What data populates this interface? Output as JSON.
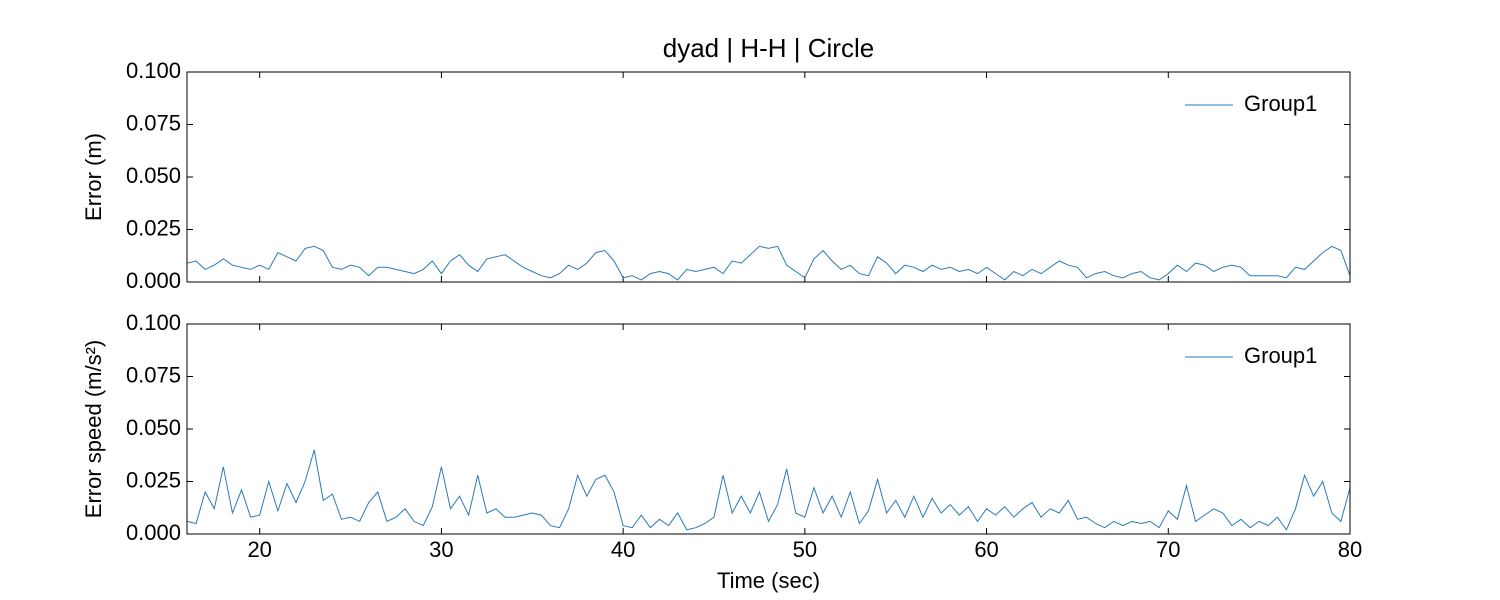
{
  "chart_data": [
    {
      "type": "line",
      "title": "dyad | H-H | Circle",
      "ylabel": "Error (m)",
      "x": [
        16,
        16.5,
        17,
        17.5,
        18,
        18.5,
        19,
        19.5,
        20,
        20.5,
        21,
        21.5,
        22,
        22.5,
        23,
        23.5,
        24,
        24.5,
        25,
        25.5,
        26,
        26.5,
        27,
        27.5,
        28,
        28.5,
        29,
        29.5,
        30,
        30.5,
        31,
        31.5,
        32,
        32.5,
        33,
        33.5,
        34,
        34.5,
        35,
        35.5,
        36,
        36.5,
        37,
        37.5,
        38,
        38.5,
        39,
        39.5,
        40,
        40.5,
        41,
        41.5,
        42,
        42.5,
        43,
        43.5,
        44,
        44.5,
        45,
        45.5,
        46,
        46.5,
        47,
        47.5,
        48,
        48.5,
        49,
        49.5,
        50,
        50.5,
        51,
        51.5,
        52,
        52.5,
        53,
        53.5,
        54,
        54.5,
        55,
        55.5,
        56,
        56.5,
        57,
        57.5,
        58,
        58.5,
        59,
        59.5,
        60,
        60.5,
        61,
        61.5,
        62,
        62.5,
        63,
        63.5,
        64,
        64.5,
        65,
        65.5,
        66,
        66.5,
        67,
        67.5,
        68,
        68.5,
        69,
        69.5,
        70,
        70.5,
        71,
        71.5,
        72,
        72.5,
        73,
        73.5,
        74,
        74.5,
        75,
        75.5,
        76,
        76.5,
        77,
        77.5,
        78,
        78.5,
        79,
        79.5,
        80
      ],
      "series": [
        {
          "name": "Group1",
          "color": "#2a7ab8",
          "values": [
            0.009,
            0.01,
            0.006,
            0.008,
            0.011,
            0.008,
            0.007,
            0.006,
            0.008,
            0.006,
            0.014,
            0.012,
            0.01,
            0.016,
            0.017,
            0.015,
            0.007,
            0.006,
            0.008,
            0.007,
            0.003,
            0.007,
            0.007,
            0.006,
            0.005,
            0.004,
            0.006,
            0.01,
            0.004,
            0.01,
            0.013,
            0.008,
            0.005,
            0.011,
            0.012,
            0.013,
            0.01,
            0.007,
            0.005,
            0.003,
            0.002,
            0.004,
            0.008,
            0.006,
            0.009,
            0.014,
            0.015,
            0.01,
            0.002,
            0.003,
            0.001,
            0.004,
            0.005,
            0.004,
            0.001,
            0.006,
            0.005,
            0.006,
            0.007,
            0.004,
            0.01,
            0.009,
            0.013,
            0.017,
            0.016,
            0.017,
            0.008,
            0.005,
            0.002,
            0.011,
            0.015,
            0.01,
            0.006,
            0.008,
            0.004,
            0.003,
            0.012,
            0.009,
            0.004,
            0.008,
            0.007,
            0.005,
            0.008,
            0.006,
            0.007,
            0.005,
            0.006,
            0.004,
            0.007,
            0.004,
            0.001,
            0.005,
            0.003,
            0.006,
            0.004,
            0.007,
            0.01,
            0.008,
            0.007,
            0.002,
            0.004,
            0.005,
            0.003,
            0.002,
            0.004,
            0.005,
            0.002,
            0.001,
            0.004,
            0.008,
            0.005,
            0.009,
            0.008,
            0.005,
            0.007,
            0.008,
            0.007,
            0.003,
            0.003,
            0.003,
            0.003,
            0.002,
            0.007,
            0.006,
            0.01,
            0.014,
            0.017,
            0.015,
            0.003
          ]
        }
      ],
      "xlim": [
        16,
        80
      ],
      "xticks": [
        20,
        30,
        40,
        50,
        60,
        70,
        80
      ],
      "ylim": [
        0,
        0.1
      ],
      "yticks": [
        {
          "value": 0,
          "label": "0.000"
        },
        {
          "value": 0.025,
          "label": "0.025"
        },
        {
          "value": 0.05,
          "label": "0.050"
        },
        {
          "value": 0.075,
          "label": "0.075"
        },
        {
          "value": 0.1,
          "label": "0.100"
        }
      ],
      "legend": "upper right"
    },
    {
      "type": "line",
      "ylabel": "Error speed (m/s²)",
      "xlabel": "Time (sec)",
      "x": [
        16,
        16.5,
        17,
        17.5,
        18,
        18.5,
        19,
        19.5,
        20,
        20.5,
        21,
        21.5,
        22,
        22.5,
        23,
        23.5,
        24,
        24.5,
        25,
        25.5,
        26,
        26.5,
        27,
        27.5,
        28,
        28.5,
        29,
        29.5,
        30,
        30.5,
        31,
        31.5,
        32,
        32.5,
        33,
        33.5,
        34,
        34.5,
        35,
        35.5,
        36,
        36.5,
        37,
        37.5,
        38,
        38.5,
        39,
        39.5,
        40,
        40.5,
        41,
        41.5,
        42,
        42.5,
        43,
        43.5,
        44,
        44.5,
        45,
        45.5,
        46,
        46.5,
        47,
        47.5,
        48,
        48.5,
        49,
        49.5,
        50,
        50.5,
        51,
        51.5,
        52,
        52.5,
        53,
        53.5,
        54,
        54.5,
        55,
        55.5,
        56,
        56.5,
        57,
        57.5,
        58,
        58.5,
        59,
        59.5,
        60,
        60.5,
        61,
        61.5,
        62,
        62.5,
        63,
        63.5,
        64,
        64.5,
        65,
        65.5,
        66,
        66.5,
        67,
        67.5,
        68,
        68.5,
        69,
        69.5,
        70,
        70.5,
        71,
        71.5,
        72,
        72.5,
        73,
        73.5,
        74,
        74.5,
        75,
        75.5,
        76,
        76.5,
        77,
        77.5,
        78,
        78.5,
        79,
        79.5,
        80
      ],
      "series": [
        {
          "name": "Group1",
          "color": "#2a7ab8",
          "values": [
            0.006,
            0.005,
            0.02,
            0.012,
            0.032,
            0.01,
            0.021,
            0.008,
            0.009,
            0.025,
            0.011,
            0.024,
            0.015,
            0.025,
            0.04,
            0.016,
            0.019,
            0.007,
            0.008,
            0.006,
            0.015,
            0.02,
            0.006,
            0.008,
            0.012,
            0.006,
            0.004,
            0.013,
            0.032,
            0.012,
            0.018,
            0.009,
            0.028,
            0.01,
            0.012,
            0.008,
            0.008,
            0.009,
            0.01,
            0.009,
            0.004,
            0.003,
            0.012,
            0.028,
            0.018,
            0.026,
            0.028,
            0.02,
            0.004,
            0.003,
            0.009,
            0.003,
            0.007,
            0.004,
            0.01,
            0.002,
            0.003,
            0.005,
            0.008,
            0.028,
            0.01,
            0.018,
            0.01,
            0.02,
            0.006,
            0.014,
            0.031,
            0.01,
            0.008,
            0.022,
            0.01,
            0.018,
            0.008,
            0.02,
            0.005,
            0.011,
            0.026,
            0.01,
            0.016,
            0.008,
            0.018,
            0.008,
            0.017,
            0.01,
            0.014,
            0.009,
            0.013,
            0.006,
            0.012,
            0.009,
            0.013,
            0.008,
            0.012,
            0.015,
            0.008,
            0.012,
            0.01,
            0.016,
            0.007,
            0.008,
            0.005,
            0.003,
            0.006,
            0.004,
            0.006,
            0.005,
            0.006,
            0.003,
            0.011,
            0.007,
            0.023,
            0.006,
            0.009,
            0.012,
            0.01,
            0.004,
            0.007,
            0.003,
            0.006,
            0.004,
            0.008,
            0.002,
            0.012,
            0.028,
            0.018,
            0.025,
            0.01,
            0.006,
            0.022
          ]
        }
      ],
      "xlim": [
        16,
        80
      ],
      "xticks": [
        20,
        30,
        40,
        50,
        60,
        70,
        80
      ],
      "ylim": [
        0,
        0.1
      ],
      "yticks": [
        {
          "value": 0,
          "label": "0.000"
        },
        {
          "value": 0.025,
          "label": "0.025"
        },
        {
          "value": 0.05,
          "label": "0.050"
        },
        {
          "value": 0.075,
          "label": "0.075"
        },
        {
          "value": 0.1,
          "label": "0.100"
        }
      ],
      "legend": "upper right"
    }
  ]
}
